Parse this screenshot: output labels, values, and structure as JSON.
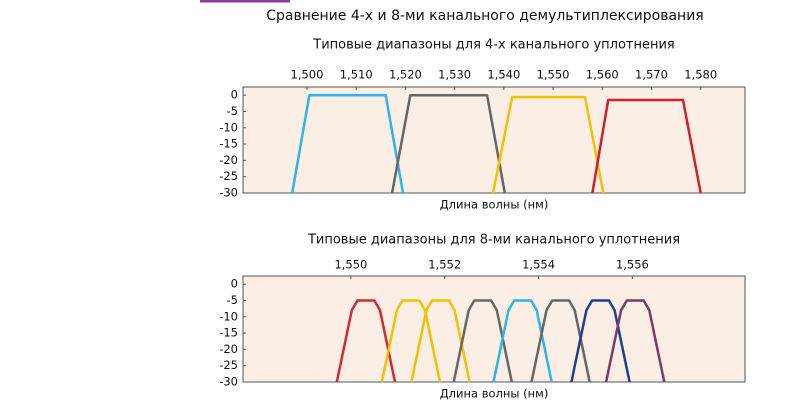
{
  "title": "Сравнение 4-х и 8-ми канального демультиплексирования",
  "chart_data": [
    {
      "type": "line",
      "title": "Типовые диапазоны для 4-х канального уплотнения",
      "x_label": "Длина волны (нм)",
      "xlim": [
        1487,
        1589
      ],
      "ylim": [
        -30,
        2.5
      ],
      "grid": false,
      "xticks": [
        {
          "value": 1500,
          "label": "1,500"
        },
        {
          "value": 1510,
          "label": "1,510"
        },
        {
          "value": 1520,
          "label": "1,520"
        },
        {
          "value": 1530,
          "label": "1,530"
        },
        {
          "value": 1540,
          "label": "1,540"
        },
        {
          "value": 1550,
          "label": "1,550"
        },
        {
          "value": 1560,
          "label": "1,560"
        },
        {
          "value": 1570,
          "label": "1,570"
        },
        {
          "value": 1580,
          "label": "1,580"
        }
      ],
      "yticks": [
        0,
        -5,
        -10,
        -15,
        -20,
        -25,
        -30
      ],
      "series": [
        {
          "color": "#2eb5e8",
          "x": [
            1497,
            1500.5,
            1516,
            1519.5
          ],
          "values": [
            -30,
            0,
            0,
            -30
          ]
        },
        {
          "color": "#666666",
          "x": [
            1517.3,
            1521,
            1536.6,
            1540.2
          ],
          "values": [
            -30,
            0,
            0,
            -30
          ]
        },
        {
          "color": "#f2c200",
          "x": [
            1537.8,
            1541.7,
            1556.5,
            1560.2
          ],
          "values": [
            -30,
            -0.6,
            -0.6,
            -30
          ]
        },
        {
          "color": "#d0202a",
          "x": [
            1558,
            1561.2,
            1576.4,
            1580
          ],
          "values": [
            -30,
            -1.5,
            -1.5,
            -30
          ]
        }
      ]
    },
    {
      "type": "line",
      "title": "Типовые диапазоны для 8-ми канального уплотнения",
      "x_label": "Длина волны (нм)",
      "xlim": [
        1547.7,
        1558.4
      ],
      "ylim": [
        -30,
        2.5
      ],
      "grid": false,
      "xticks": [
        {
          "value": 1550,
          "label": "1,550"
        },
        {
          "value": 1552,
          "label": "1,552"
        },
        {
          "value": 1554,
          "label": "1,554"
        },
        {
          "value": 1556,
          "label": "1,556"
        }
      ],
      "yticks": [
        0,
        -5,
        -10,
        -15,
        -20,
        -25,
        -30
      ],
      "series": [
        {
          "color": "#d42a32",
          "x": [
            1549.7,
            1550.02,
            1550.14,
            1550.5,
            1550.62,
            1550.94
          ],
          "values": [
            -30,
            -8,
            -5,
            -5,
            -8,
            -30
          ]
        },
        {
          "color": "#f2c200",
          "x": [
            1550.66,
            1550.98,
            1551.1,
            1551.46,
            1551.58,
            1551.9
          ],
          "values": [
            -30,
            -8,
            -5,
            -5,
            -8,
            -30
          ]
        },
        {
          "color": "#f2c200",
          "x": [
            1551.29,
            1551.61,
            1551.73,
            1552.09,
            1552.21,
            1552.53
          ],
          "values": [
            -30,
            -8,
            -5,
            -5,
            -8,
            -30
          ]
        },
        {
          "color": "#666666",
          "x": [
            1552.19,
            1552.51,
            1552.63,
            1552.99,
            1553.11,
            1553.43
          ],
          "values": [
            -30,
            -8,
            -5,
            -5,
            -8,
            -30
          ]
        },
        {
          "color": "#2eb5e8",
          "x": [
            1553.04,
            1553.36,
            1553.48,
            1553.84,
            1553.96,
            1554.28
          ],
          "values": [
            -30,
            -8,
            -5,
            -5,
            -8,
            -30
          ]
        },
        {
          "color": "#666666",
          "x": [
            1553.85,
            1554.17,
            1554.29,
            1554.65,
            1554.77,
            1555.09
          ],
          "values": [
            -30,
            -8,
            -5,
            -5,
            -8,
            -30
          ]
        },
        {
          "color": "#1f3f8f",
          "x": [
            1554.7,
            1555.02,
            1555.14,
            1555.5,
            1555.62,
            1555.94
          ],
          "values": [
            -30,
            -8,
            -5,
            -5,
            -8,
            -30
          ]
        },
        {
          "color": "#7a3a6a",
          "x": [
            1555.44,
            1555.76,
            1555.88,
            1556.24,
            1556.36,
            1556.68
          ],
          "values": [
            -30,
            -8,
            -5,
            -5,
            -8,
            -30
          ]
        }
      ]
    }
  ]
}
